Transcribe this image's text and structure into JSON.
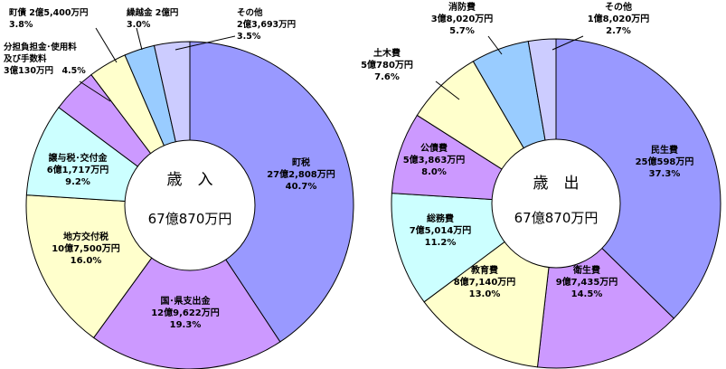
{
  "chart_data": [
    {
      "type": "pie",
      "title": "歳　入",
      "total": "67億870万円",
      "slices": [
        {
          "name": "町税",
          "amount": "27億2,808万円",
          "percent_label": "40.7%",
          "value": 40.7,
          "color": "#9999ff"
        },
        {
          "name": "国･県支出金",
          "amount": "12億9,622万円",
          "percent_label": "19.3%",
          "value": 19.3,
          "color": "#cc99ff"
        },
        {
          "name": "地方交付税",
          "amount": "10億7,500万円",
          "percent_label": "16.0%",
          "value": 16.0,
          "color": "#ffffcc"
        },
        {
          "name": "譲与税･交付金",
          "amount": "6億1,717万円",
          "percent_label": "9.2%",
          "value": 9.2,
          "color": "#ccffff"
        },
        {
          "name": "分担負担金･使用料及び手数料",
          "name_line1": "分担負担金･使用料",
          "name_line2": "及び手数料",
          "amount": "3億130万円",
          "percent_label": "4.5%",
          "value": 4.5,
          "color": "#cc99ff"
        },
        {
          "name": "町債",
          "amount": "2億5,400万円",
          "percent_label": "3.8%",
          "value": 3.8,
          "color": "#ffffcc"
        },
        {
          "name": "繰越金",
          "amount": "2億円",
          "percent_label": "3.0%",
          "value": 3.0,
          "color": "#99ccff"
        },
        {
          "name": "その他",
          "amount": "2億3,693万円",
          "percent_label": "3.5%",
          "value": 3.5,
          "color": "#ccccff"
        }
      ]
    },
    {
      "type": "pie",
      "title": "歳　出",
      "total": "67億870万円",
      "slices": [
        {
          "name": "民生費",
          "amount": "25億598万円",
          "percent_label": "37.3%",
          "value": 37.3,
          "color": "#9999ff"
        },
        {
          "name": "衛生費",
          "amount": "9億7,435万円",
          "percent_label": "14.5%",
          "value": 14.5,
          "color": "#cc99ff"
        },
        {
          "name": "教育費",
          "amount": "8億7,140万円",
          "percent_label": "13.0%",
          "value": 13.0,
          "color": "#ffffcc"
        },
        {
          "name": "総務費",
          "amount": "7億5,014万円",
          "percent_label": "11.2%",
          "value": 11.2,
          "color": "#ccffff"
        },
        {
          "name": "公債費",
          "amount": "5億3,863万円",
          "percent_label": "8.0%",
          "value": 8.0,
          "color": "#cc99ff"
        },
        {
          "name": "土木費",
          "amount": "5億780万円",
          "percent_label": "7.6%",
          "value": 7.6,
          "color": "#ffffcc"
        },
        {
          "name": "消防費",
          "amount": "3億8,020万円",
          "percent_label": "5.7%",
          "value": 5.7,
          "color": "#99ccff"
        },
        {
          "name": "その他",
          "amount": "1億8,020万円",
          "percent_label": "2.7%",
          "value": 2.7,
          "color": "#ccccff"
        }
      ]
    }
  ]
}
